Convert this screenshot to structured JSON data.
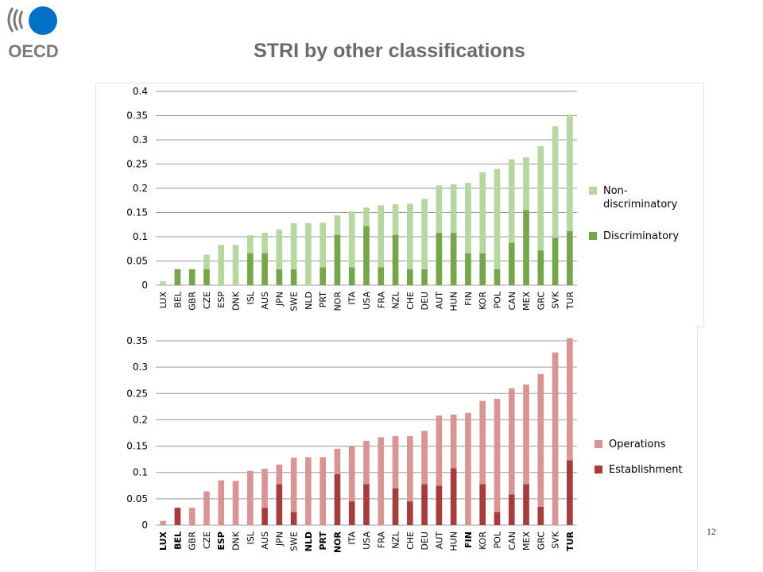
{
  "slide": {
    "title": "STRI by other classifications",
    "logo_text": "OECD",
    "page_number": "12"
  },
  "colors": {
    "oecd_blue": "#0071c5",
    "oecd_grey": "#7a7a7a",
    "non_discriminatory": "#b6d7a0",
    "discriminatory": "#76a64c",
    "operations": "#d99594",
    "establishment": "#a63c3c"
  },
  "chart_data": [
    {
      "type": "bar",
      "stacked": true,
      "categories": [
        "LUX",
        "BEL",
        "GBR",
        "CZE",
        "ESP",
        "DNK",
        "ISL",
        "AUS",
        "JPN",
        "SWE",
        "NLD",
        "PRT",
        "NOR",
        "ITA",
        "USA",
        "FRA",
        "NZL",
        "CHE",
        "DEU",
        "AUT",
        "HUN",
        "FIN",
        "KOR",
        "POL",
        "CAN",
        "MEX",
        "GRC",
        "SVK",
        "TUR"
      ],
      "series": [
        {
          "name": "Non-discriminatory",
          "legend_lines": [
            "Non-",
            "discriminatory"
          ],
          "color": "#b6d7a0",
          "values": [
            0.008,
            0.0,
            0.0,
            0.03,
            0.083,
            0.083,
            0.037,
            0.042,
            0.082,
            0.095,
            0.128,
            0.092,
            0.04,
            0.115,
            0.038,
            0.128,
            0.063,
            0.135,
            0.145,
            0.098,
            0.1,
            0.145,
            0.167,
            0.207,
            0.172,
            0.109,
            0.215,
            0.23,
            0.24
          ]
        },
        {
          "name": "Discriminatory",
          "legend_lines": [
            "Discriminatory"
          ],
          "color": "#76a64c",
          "values": [
            0.0,
            0.033,
            0.033,
            0.033,
            0.0,
            0.0,
            0.066,
            0.066,
            0.033,
            0.033,
            0.0,
            0.037,
            0.104,
            0.037,
            0.122,
            0.037,
            0.104,
            0.033,
            0.033,
            0.108,
            0.108,
            0.066,
            0.066,
            0.033,
            0.088,
            0.155,
            0.072,
            0.098,
            0.112
          ]
        }
      ],
      "y_ticks": [
        "0",
        "0.05",
        "0.1",
        "0.15",
        "0.2",
        "0.25",
        "0.3",
        "0.35",
        "0.4"
      ],
      "ylim": [
        0,
        0.4
      ],
      "grid": true,
      "legend_position": "right",
      "bold_categories": []
    },
    {
      "type": "bar",
      "stacked": true,
      "categories": [
        "LUX",
        "BEL",
        "GBR",
        "CZE",
        "ESP",
        "DNK",
        "ISL",
        "AUS",
        "JPN",
        "SWE",
        "NLD",
        "PRT",
        "NOR",
        "ITA",
        "USA",
        "FRA",
        "NZL",
        "CHE",
        "DEU",
        "AUT",
        "HUN",
        "FIN",
        "KOR",
        "POL",
        "CAN",
        "MEX",
        "GRC",
        "SVK",
        "TUR"
      ],
      "series": [
        {
          "name": "Operations",
          "legend_lines": [
            "Operations"
          ],
          "color": "#d99594",
          "values": [
            0.008,
            0.0,
            0.033,
            0.064,
            0.085,
            0.084,
            0.103,
            0.074,
            0.037,
            0.103,
            0.129,
            0.129,
            0.048,
            0.105,
            0.082,
            0.167,
            0.099,
            0.124,
            0.101,
            0.133,
            0.102,
            0.213,
            0.158,
            0.215,
            0.202,
            0.189,
            0.252,
            0.328,
            0.232
          ]
        },
        {
          "name": "Establishment",
          "legend_lines": [
            "Establishment"
          ],
          "color": "#a63c3c",
          "values": [
            0.0,
            0.033,
            0.0,
            0.0,
            0.0,
            0.0,
            0.0,
            0.033,
            0.078,
            0.025,
            0.0,
            0.0,
            0.097,
            0.045,
            0.078,
            0.0,
            0.07,
            0.045,
            0.078,
            0.075,
            0.108,
            0.0,
            0.078,
            0.025,
            0.058,
            0.078,
            0.035,
            0.0,
            0.123
          ]
        }
      ],
      "y_ticks": [
        "0",
        "0.05",
        "0.1",
        "0.15",
        "0.2",
        "0.25",
        "0.3",
        "0.35"
      ],
      "ylim": [
        0,
        0.35
      ],
      "grid": true,
      "legend_position": "right",
      "bold_categories": [
        "LUX",
        "BEL",
        "ESP",
        "NLD",
        "PRT",
        "NOR",
        "FIN",
        "TUR"
      ]
    }
  ]
}
